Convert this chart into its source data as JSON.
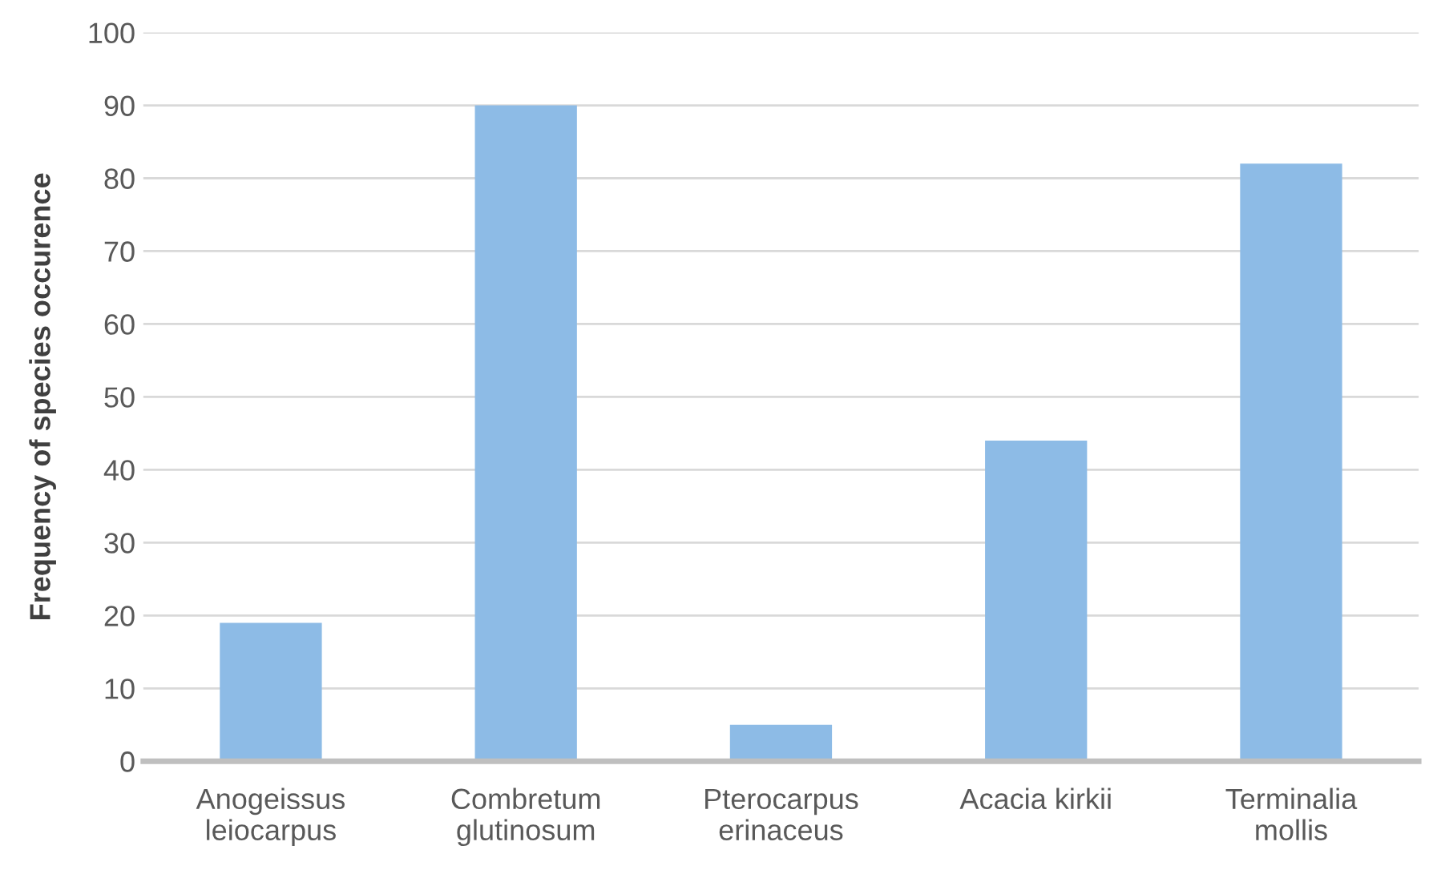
{
  "chart_data": {
    "type": "bar",
    "ylabel": "Frequency of species occurence",
    "categories": [
      "Anogeissus\nleiocarpus",
      "Combretum\nglutinosum",
      "Pterocarpus\nerinaceus",
      "Acacia kirkii",
      "Terminalia\nmollis"
    ],
    "values": [
      19,
      90,
      5,
      44,
      82
    ],
    "color": "#8dbbe6",
    "ylim": [
      0,
      100
    ],
    "yticks": [
      0,
      10,
      20,
      30,
      40,
      50,
      60,
      70,
      80,
      90,
      100
    ],
    "grid": "y"
  }
}
